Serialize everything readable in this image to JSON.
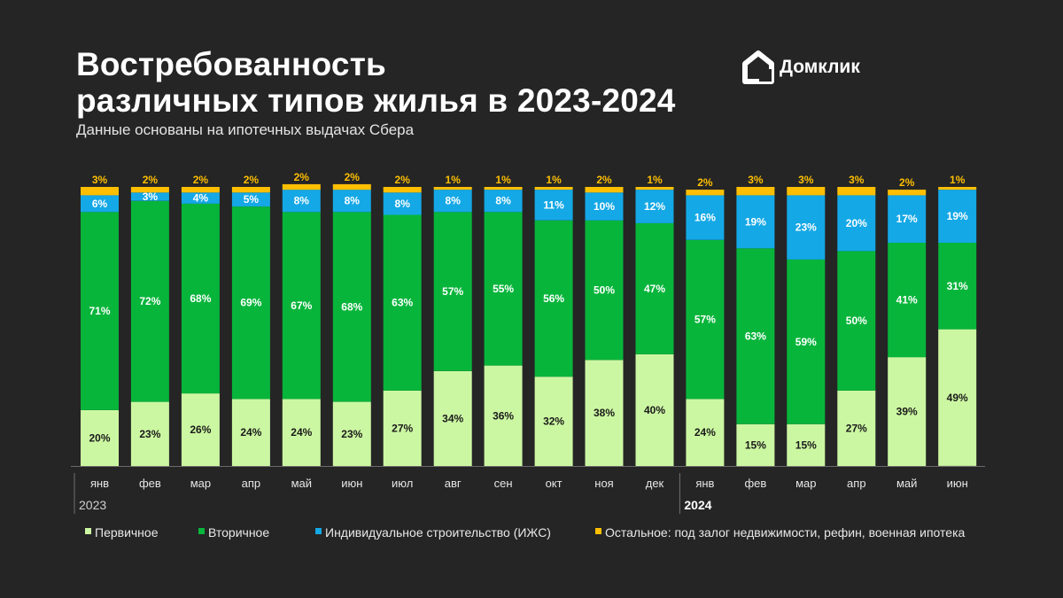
{
  "header": {
    "title_line1": "Востребованность",
    "title_line2": "различных типов жилья в 2023-2024",
    "subtitle": "Данные основаны на ипотечных выдачах Сбера",
    "brand_name": "Домклик",
    "brand_icon": "domclick-house-icon"
  },
  "chart_data": {
    "type": "stacked-bar",
    "title": "Востребованность различных типов жилья в 2023-2024",
    "ylim": [
      0,
      100
    ],
    "grid": false,
    "categories": [
      "янв",
      "фев",
      "мар",
      "апр",
      "май",
      "июн",
      "июл",
      "авг",
      "сен",
      "окт",
      "ноя",
      "дек",
      "янв",
      "фев",
      "мар",
      "апр",
      "май",
      "июн"
    ],
    "years": [
      {
        "label": "2023",
        "start": 0,
        "end": 11,
        "bold": false
      },
      {
        "label": "2024",
        "start": 12,
        "end": 17,
        "bold": true
      }
    ],
    "series": [
      {
        "name": "Первичное",
        "color": "#ccf7a2",
        "label_color": "#1a1a1a",
        "values": [
          20,
          23,
          26,
          24,
          24,
          23,
          27,
          34,
          36,
          32,
          38,
          40,
          24,
          15,
          15,
          27,
          39,
          49
        ]
      },
      {
        "name": "Вторичное",
        "color": "#08b53b",
        "label_color": "#ffffff",
        "values": [
          71,
          72,
          68,
          69,
          67,
          68,
          63,
          57,
          55,
          56,
          50,
          47,
          57,
          63,
          59,
          50,
          41,
          31
        ]
      },
      {
        "name": "Индивидуальное строительство (ИЖС)",
        "color": "#14a8e6",
        "label_color": "#ffffff",
        "values": [
          6,
          3,
          4,
          5,
          8,
          8,
          8,
          8,
          8,
          11,
          10,
          12,
          16,
          19,
          23,
          20,
          17,
          19
        ]
      },
      {
        "name": "Остальное: под залог недвижимости, рефин, военная ипотека",
        "color": "#ffbf00",
        "label_color": "#ffbf00",
        "values": [
          3,
          2,
          2,
          2,
          2,
          2,
          2,
          1,
          1,
          1,
          2,
          1,
          2,
          3,
          3,
          3,
          2,
          1
        ]
      }
    ],
    "legend_position": "bottom"
  }
}
